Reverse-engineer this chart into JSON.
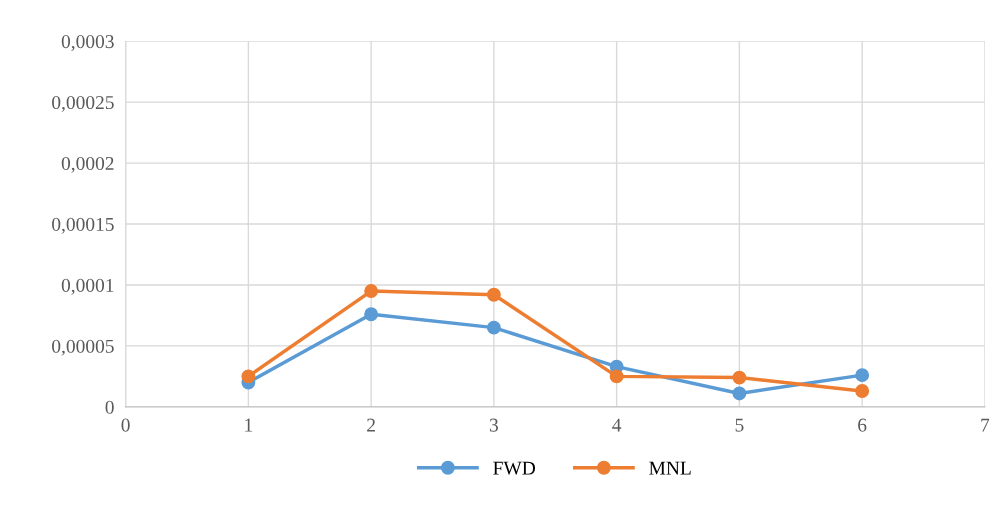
{
  "chart_data": {
    "type": "line",
    "x": [
      1,
      2,
      3,
      4,
      5,
      6
    ],
    "series": [
      {
        "name": "FWD",
        "color": "#5b9bd5",
        "values": [
          2e-05,
          7.6e-05,
          6.5e-05,
          3.3e-05,
          1.1e-05,
          2.6e-05
        ]
      },
      {
        "name": "MNL",
        "color": "#ed7d31",
        "values": [
          2.5e-05,
          9.5e-05,
          9.2e-05,
          2.5e-05,
          2.4e-05,
          1.3e-05
        ]
      }
    ],
    "xlim": [
      0,
      7
    ],
    "xticks": [
      0,
      1,
      2,
      3,
      4,
      5,
      6,
      7
    ],
    "ylim": [
      0,
      0.0003
    ],
    "yticks": [
      {
        "value": 0,
        "label": "0"
      },
      {
        "value": 5e-05,
        "label": "0,00005"
      },
      {
        "value": 0.0001,
        "label": "0,0001"
      },
      {
        "value": 0.00015,
        "label": "0,00015"
      },
      {
        "value": 0.0002,
        "label": "0,0002"
      },
      {
        "value": 0.00025,
        "label": "0,00025"
      },
      {
        "value": 0.0003,
        "label": "0,0003"
      }
    ],
    "grid": true,
    "legend": "bottom",
    "marker": "circle",
    "line_style": "solid"
  }
}
